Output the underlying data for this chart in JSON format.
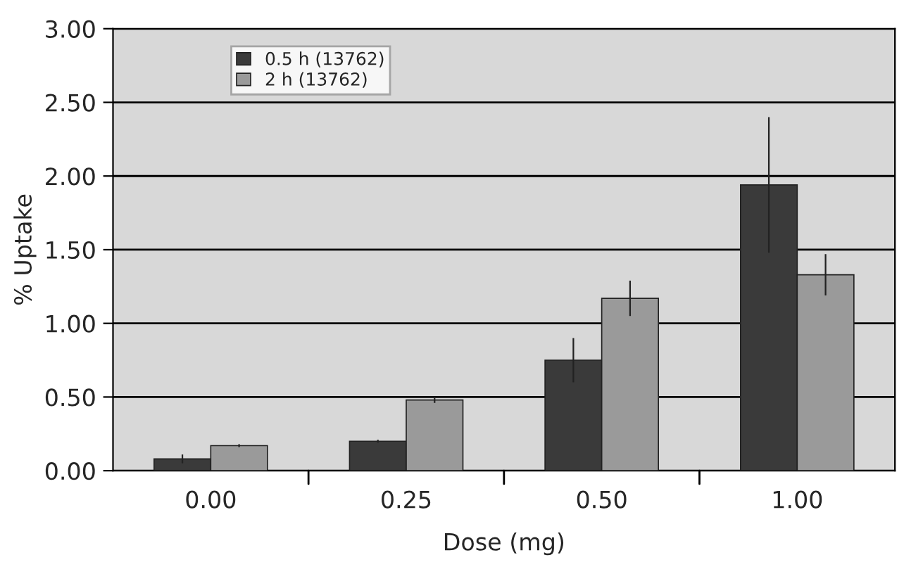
{
  "chart_data": {
    "type": "bar",
    "xlabel": "Dose (mg)",
    "ylabel": "% Uptake",
    "categories": [
      "0.00",
      "0.25",
      "0.50",
      "1.00"
    ],
    "series": [
      {
        "name": "0.5 h (13762)",
        "color": "#3a3a3a",
        "values": [
          0.08,
          0.2,
          0.75,
          1.94
        ],
        "errors": [
          0.03,
          0.01,
          0.15,
          0.46
        ]
      },
      {
        "name": "2 h (13762)",
        "color": "#9a9a9a",
        "values": [
          0.17,
          0.48,
          1.17,
          1.33
        ],
        "errors": [
          0.01,
          0.02,
          0.12,
          0.14
        ]
      }
    ],
    "ylim": [
      0,
      3
    ],
    "yticks": [
      {
        "value": 0,
        "label": "0.00"
      },
      {
        "value": 0.5,
        "label": "0.50"
      },
      {
        "value": 1,
        "label": "1.00"
      },
      {
        "value": 1.5,
        "label": "1.50"
      },
      {
        "value": 2,
        "label": "2.00"
      },
      {
        "value": 2.5,
        "label": "2.50"
      },
      {
        "value": 3,
        "label": "3.00"
      }
    ],
    "grid": "y",
    "legend": "top left"
  }
}
